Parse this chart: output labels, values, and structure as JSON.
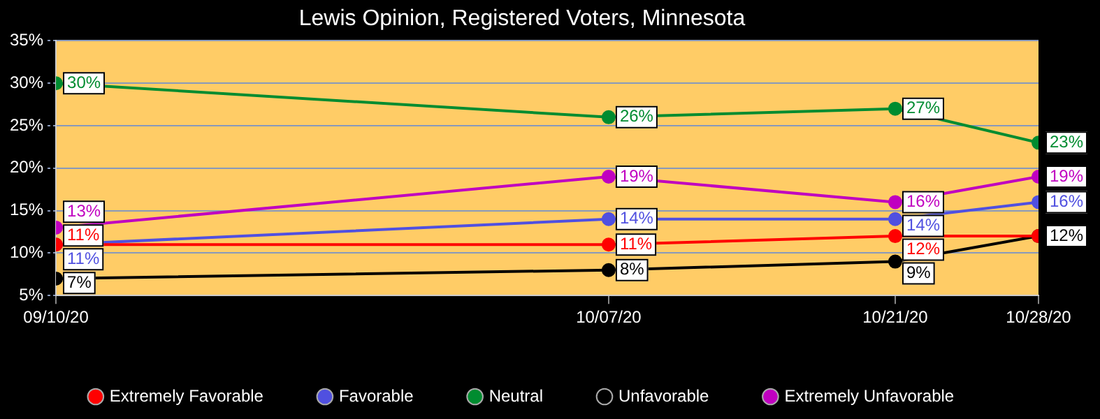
{
  "chart_data": {
    "type": "line",
    "title": "Lewis Opinion, Registered Voters, Minnesota",
    "x": [
      "--09-10",
      "--10-07",
      "--10-21",
      "--10-28"
    ],
    "xlim": [
      "--09-10",
      "--10-28"
    ],
    "xticks": [
      {
        "value": "--09-10",
        "label": "09/10/20"
      },
      {
        "value": "--10-07",
        "label": "10/07/20"
      },
      {
        "value": "--10-21",
        "label": "10/21/20"
      },
      {
        "value": "--10-28",
        "label": "10/28/20"
      }
    ],
    "ylim": [
      5,
      35
    ],
    "yticks": [
      {
        "value": 5,
        "label": "5%"
      },
      {
        "value": 10,
        "label": "10%"
      },
      {
        "value": 15,
        "label": "15%"
      },
      {
        "value": 20,
        "label": "20%"
      },
      {
        "value": 25,
        "label": "25%"
      },
      {
        "value": 30,
        "label": "30%"
      },
      {
        "value": 35,
        "label": "35%"
      }
    ],
    "series": [
      {
        "name": "Extremely Favorable",
        "color": "#ff0000",
        "values": [
          11,
          11,
          12,
          12
        ],
        "value_labels": [
          "11%",
          "11%",
          "12%",
          null
        ]
      },
      {
        "name": "Favorable",
        "color": "#5050e0",
        "values": [
          11,
          14,
          14,
          16
        ],
        "value_labels": [
          "11%",
          "14%",
          "14%",
          "16%"
        ]
      },
      {
        "name": "Neutral",
        "color": "#008c30",
        "values": [
          30,
          26,
          27,
          23
        ],
        "value_labels": [
          "30%",
          "26%",
          "27%",
          "23%"
        ]
      },
      {
        "name": "Unfavorable",
        "color": "#000000",
        "values": [
          7,
          8,
          9,
          12
        ],
        "value_labels": [
          "7%",
          "8%",
          "9%",
          "12%"
        ]
      },
      {
        "name": "Extremely Unfavorable",
        "color": "#c000c0",
        "values": [
          13,
          19,
          16,
          19
        ],
        "value_labels": [
          "13%",
          "19%",
          "16%",
          "19%"
        ]
      }
    ],
    "grid": "y",
    "legend": "bottom",
    "marker": "circle",
    "line_style": "solid"
  }
}
